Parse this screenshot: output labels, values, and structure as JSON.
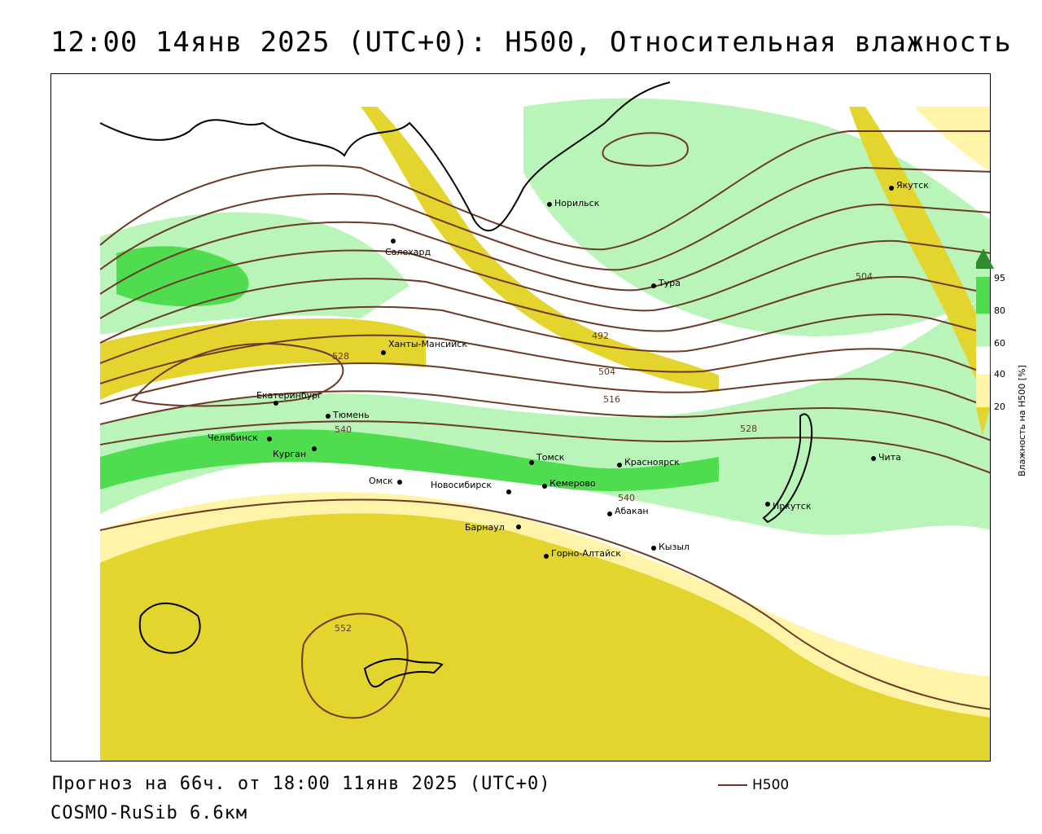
{
  "title": "12:00 14янв 2025 (UTC+0): H500, Относительная влажность",
  "footer": {
    "forecast": "Прогноз на 66ч. от 18:00 11янв 2025 (UTC+0)",
    "model": "COSMO-RuSib 6.6км"
  },
  "legend": {
    "line_label": "H500",
    "line_color": "#6b3a28"
  },
  "colorbar": {
    "title": "Влажность на H500 [%]",
    "ticks": [
      "20",
      "40",
      "60",
      "80",
      "95"
    ],
    "colors": {
      "95": "#2e8b2e",
      "80": "#4fdc4f",
      "60": "#b9f5b9",
      "40": "#ffffff",
      "20": "#fff4a8",
      "0": "#e3d42e"
    }
  },
  "cities": [
    {
      "name": "Якутск"
    },
    {
      "name": "Норильск"
    },
    {
      "name": "Салехард"
    },
    {
      "name": "Тура"
    },
    {
      "name": "Ханты-Мансийск"
    },
    {
      "name": "Екатеринбург"
    },
    {
      "name": "Тюмень"
    },
    {
      "name": "Челябинск"
    },
    {
      "name": "Курган"
    },
    {
      "name": "Томск"
    },
    {
      "name": "Красноярск"
    },
    {
      "name": "Чита"
    },
    {
      "name": "Омск"
    },
    {
      "name": "Новосибирск"
    },
    {
      "name": "Кемерово"
    },
    {
      "name": "Абакан"
    },
    {
      "name": "Иркутск"
    },
    {
      "name": "Барнаул"
    },
    {
      "name": "Горно-Алтайск"
    },
    {
      "name": "Кызыл"
    }
  ],
  "isolines": [
    "504",
    "492",
    "504",
    "516",
    "528",
    "528",
    "540",
    "540",
    "552"
  ]
}
